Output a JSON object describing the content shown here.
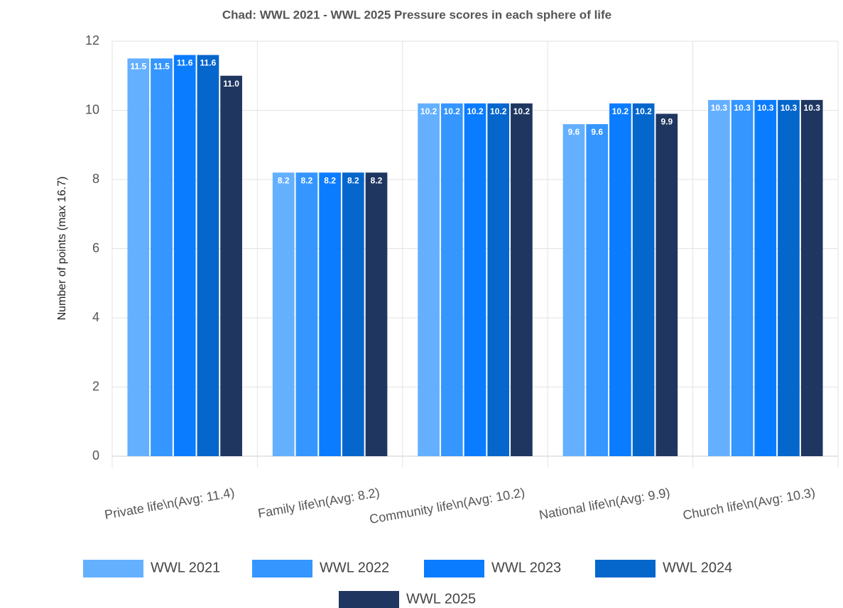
{
  "chart_data": {
    "type": "bar",
    "title": "Chad: WWL 2021 - WWL 2025 Pressure scores in each sphere of life",
    "y_label": "Number of points (max 16.7)",
    "categories": [
      "Private life\\n(Avg: 11.4)",
      "Family life\\n(Avg: 8.2)",
      "Community life\\n(Avg: 10.2)",
      "National life\\n(Avg: 9.9)",
      "Church life\\n(Avg: 10.3)"
    ],
    "series": [
      {
        "name": "WWL 2021",
        "color": "#64b0ff",
        "values": [
          11.5,
          8.2,
          10.2,
          9.6,
          10.3
        ]
      },
      {
        "name": "WWL 2022",
        "color": "#3596ff",
        "values": [
          11.5,
          8.2,
          10.2,
          9.6,
          10.3
        ]
      },
      {
        "name": "WWL 2023",
        "color": "#0a7cff",
        "values": [
          11.6,
          8.2,
          10.2,
          10.2,
          10.3
        ]
      },
      {
        "name": "WWL 2024",
        "color": "#0566cc",
        "values": [
          11.6,
          8.2,
          10.2,
          10.2,
          10.3
        ]
      },
      {
        "name": "WWL 2025",
        "color": "#1f3660",
        "values": [
          11.0,
          8.2,
          10.2,
          9.9,
          10.3
        ],
        "value_labels": [
          "11.0",
          "8.2",
          "10.2",
          "9.9",
          "10.3"
        ]
      }
    ],
    "ylim": [
      0,
      12
    ],
    "yticks": [
      0,
      2,
      4,
      6,
      8,
      10,
      12
    ],
    "grid": true,
    "legend": "bottom"
  }
}
